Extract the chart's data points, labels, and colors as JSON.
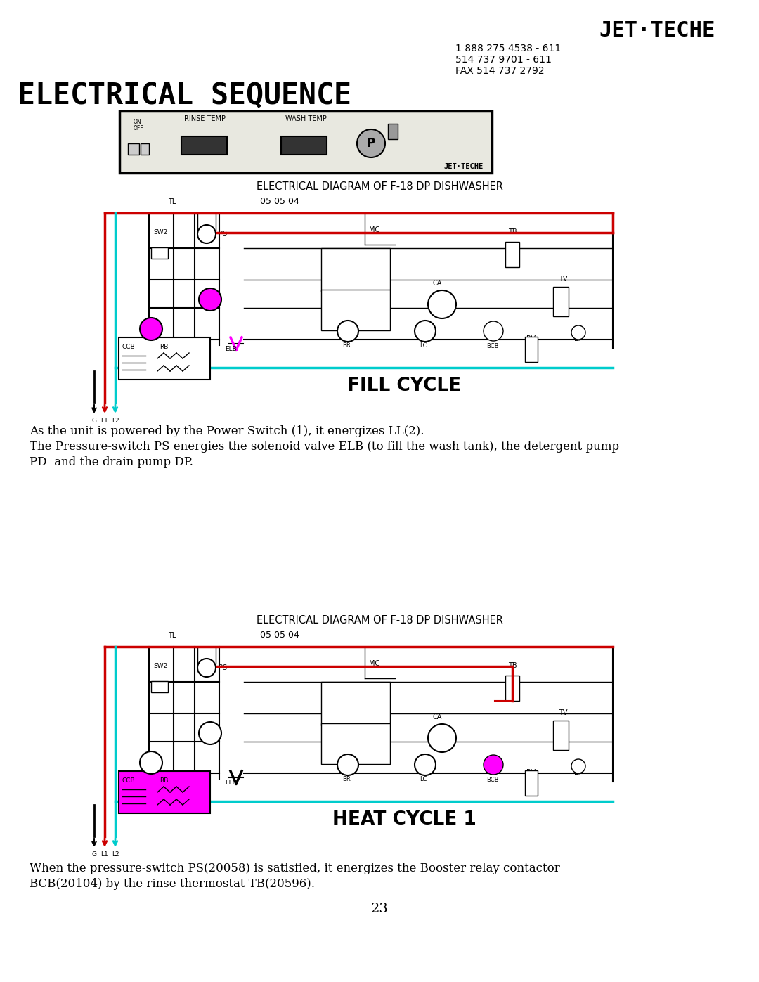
{
  "title": "ELECTRICAL SEQUENCE",
  "logo_text": "JET·TECHE",
  "contact_line1": "1 888 275 4538 - 611",
  "contact_line2": "514 737 9701 - 611",
  "contact_line3": "FAX 514 737 2792",
  "diagram_title": "ELECTRICAL DIAGRAM OF F-18 DP DISHWASHER",
  "diagram_date": "05 05 04",
  "fill_cycle_label": "FILL CYCLE",
  "heat_cycle_label": "HEAT CYCLE 1",
  "para1_line1": "As the unit is powered by the Power Switch (1), it energizes LL(2).",
  "para1_line2": "The Pressure-switch PS energies the solenoid valve ELB (to fill the wash tank), the detergent pump",
  "para1_line3": "PD  and the drain pump DP.",
  "para2_line1": "When the pressure-switch PS(20058) is satisfied, it energizes the Booster relay contactor",
  "para2_line2": "BCB(20104) by the rinse thermostat TB(20596).",
  "page_number": "23",
  "bg_color": "#ffffff",
  "text_color": "#000000",
  "red_color": "#cc0000",
  "cyan_color": "#00cccc",
  "magenta_color": "#ff00ff",
  "panel_fill": "#e8e8e0"
}
